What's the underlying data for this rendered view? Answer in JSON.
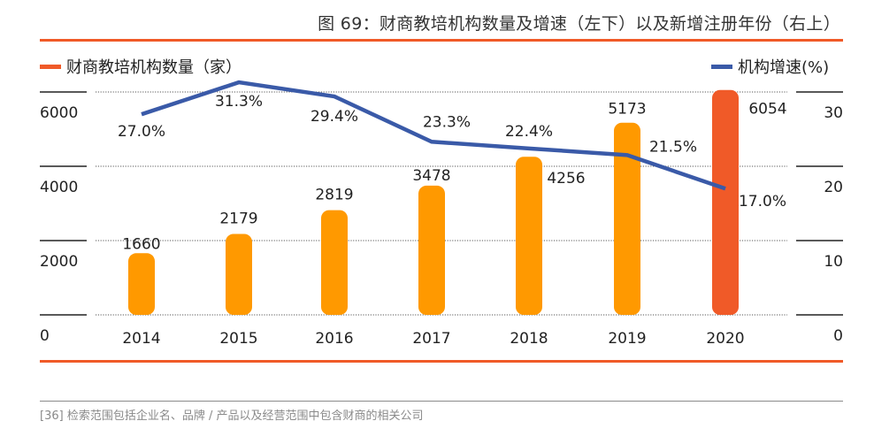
{
  "header": {
    "title": "图 69：财商教培机构数量及增速（左下）以及新增注册年份（右上）"
  },
  "footer": {
    "note": "[36] 检索范围包括企业名、品牌 / 产品以及经营范围中包含财商的相关公司"
  },
  "colors": {
    "accent": "#f05a28",
    "bar": "#ff9900",
    "bar_highlight": "#f05a28",
    "line": "#3a5aa8",
    "text": "#222222",
    "note": "#8a8a8a"
  },
  "chart_data": {
    "type": "bar+line",
    "title": "图 69：财商教培机构数量及增速（左下）以及新增注册年份（右上）",
    "categories": [
      "2014",
      "2015",
      "2016",
      "2017",
      "2018",
      "2019",
      "2020"
    ],
    "series": [
      {
        "name": "财商教培机构数量（家）",
        "type": "bar",
        "axis": "left",
        "values": [
          1660,
          2179,
          2819,
          3478,
          4256,
          5173,
          6054
        ],
        "labels": [
          "1660",
          "2179",
          "2819",
          "3478",
          "4256",
          "5173",
          "6054"
        ],
        "highlight_index": 6
      },
      {
        "name": "机构增速(%)",
        "type": "line",
        "axis": "right",
        "values": [
          27.0,
          31.3,
          29.4,
          23.3,
          22.4,
          21.5,
          17.0
        ],
        "labels": [
          "27.0%",
          "31.3%",
          "29.4%",
          "23.3%",
          "22.4%",
          "21.5%",
          "17.0%"
        ]
      }
    ],
    "left_axis": {
      "ylim": [
        0,
        6000
      ],
      "ticks": [
        "0",
        "2000",
        "4000",
        "6000"
      ],
      "tick_values": [
        0,
        2000,
        4000,
        6000
      ]
    },
    "right_axis": {
      "ylim": [
        0,
        30
      ],
      "ticks": [
        "0",
        "10",
        "20",
        "30"
      ],
      "tick_values": [
        0,
        10,
        20,
        30
      ]
    },
    "legend": {
      "left_label": "财商教培机构数量（家）",
      "right_label": "机构增速(%)",
      "placement": "top"
    },
    "grid": true
  }
}
